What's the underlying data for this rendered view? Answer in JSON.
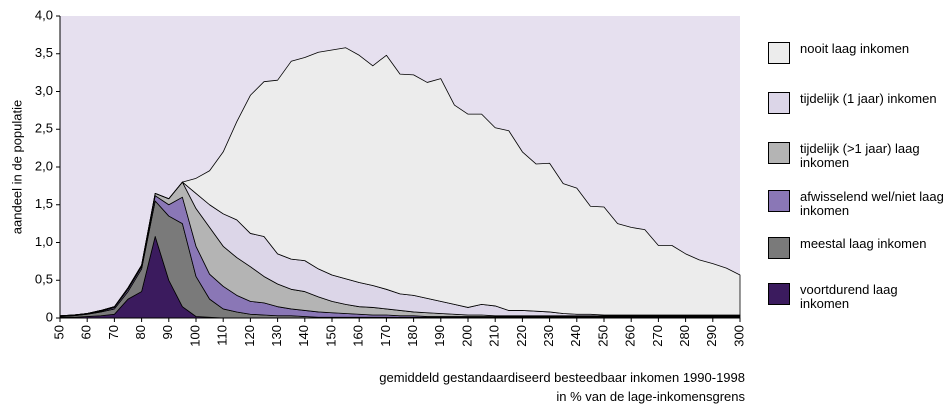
{
  "chart_data": {
    "type": "stacked-area",
    "ylabel": "aandeel in de populatie",
    "xlabel": [
      "gemiddeld gestandaardiseerd besteedbaar inkomen 1990-1998",
      "in % van de lage-inkomensgrens"
    ],
    "background": "#e6e0ef",
    "xlim": [
      50,
      300
    ],
    "ylim": [
      0,
      4
    ],
    "xticks": [
      50,
      60,
      70,
      80,
      90,
      100,
      110,
      120,
      130,
      140,
      150,
      160,
      170,
      180,
      190,
      200,
      210,
      220,
      230,
      240,
      250,
      260,
      270,
      280,
      290,
      300
    ],
    "yticks": [
      0,
      {
        "value": 0.5,
        "label": "0,5"
      },
      {
        "value": 1,
        "label": "1,0"
      },
      {
        "value": 1.5,
        "label": "1,5"
      },
      {
        "value": 2,
        "label": "2,0"
      },
      {
        "value": 2.5,
        "label": "2,5"
      },
      {
        "value": 3,
        "label": "3,0"
      },
      {
        "value": 3.5,
        "label": "3,5"
      },
      {
        "value": 4,
        "label": "4,0"
      }
    ],
    "x": [
      50,
      55,
      60,
      65,
      70,
      75,
      80,
      85,
      90,
      95,
      100,
      105,
      110,
      115,
      120,
      125,
      130,
      135,
      140,
      145,
      150,
      155,
      160,
      165,
      170,
      175,
      180,
      185,
      190,
      195,
      200,
      205,
      210,
      215,
      220,
      225,
      230,
      235,
      240,
      245,
      250,
      255,
      260,
      265,
      270,
      275,
      280,
      285,
      290,
      295,
      300
    ],
    "series": [
      {
        "name": "voortdurend laag inkomen",
        "color": "#3b1b5e",
        "values": [
          0.01,
          0.01,
          0.02,
          0.03,
          0.05,
          0.25,
          0.35,
          1.08,
          0.5,
          0.15,
          0.02,
          0.01,
          0,
          0,
          0,
          0,
          0,
          0,
          0,
          0,
          0,
          0,
          0,
          0,
          0,
          0,
          0,
          0,
          0,
          0,
          0,
          0,
          0,
          0,
          0,
          0,
          0,
          0,
          0,
          0,
          0,
          0,
          0,
          0,
          0,
          0,
          0,
          0,
          0,
          0,
          0
        ]
      },
      {
        "name": "meestal laag inkomen",
        "color": "#7a7a7a",
        "values": [
          0.01,
          0.02,
          0.03,
          0.05,
          0.07,
          0.1,
          0.3,
          0.47,
          0.85,
          1.1,
          0.53,
          0.24,
          0.12,
          0.08,
          0.05,
          0.04,
          0.03,
          0.03,
          0.02,
          0.01,
          0.01,
          0.01,
          0.01,
          0.01,
          0.01,
          0.01,
          0.01,
          0.01,
          0.01,
          0.01,
          0.01,
          0.01,
          0.01,
          0.01,
          0.01,
          0.01,
          0.01,
          0.01,
          0.01,
          0.01,
          0.01,
          0.01,
          0.01,
          0.01,
          0.01,
          0.01,
          0.01,
          0.01,
          0.01,
          0.01,
          0.01
        ]
      },
      {
        "name": "afwisselend wel/niet laag inkomen",
        "color": "#8a77b6",
        "values": [
          0.01,
          0.01,
          0.01,
          0.01,
          0.02,
          0.03,
          0.03,
          0.07,
          0.15,
          0.35,
          0.4,
          0.33,
          0.3,
          0.22,
          0.17,
          0.16,
          0.12,
          0.09,
          0.08,
          0.07,
          0.06,
          0.05,
          0.04,
          0.03,
          0.03,
          0.02,
          0.02,
          0.01,
          0.01,
          0.01,
          0.01,
          0.01,
          0.01,
          0.01,
          0.01,
          0.01,
          0.01,
          0.01,
          0.01,
          0.01,
          0.01,
          0.01,
          0.01,
          0.01,
          0.01,
          0.01,
          0.01,
          0.01,
          0.01,
          0.01,
          0.01
        ]
      },
      {
        "name": "tijdelijk (>1 jaar) laag inkomen",
        "color": "#b4b4b4",
        "values": [
          0,
          0,
          0,
          0.01,
          0.01,
          0.02,
          0.02,
          0.03,
          0.08,
          0.2,
          0.5,
          0.62,
          0.53,
          0.5,
          0.46,
          0.35,
          0.3,
          0.26,
          0.25,
          0.2,
          0.15,
          0.12,
          0.1,
          0.1,
          0.08,
          0.07,
          0.05,
          0.05,
          0.04,
          0.03,
          0.02,
          0.02,
          0.01,
          0.01,
          0.01,
          0.01,
          0.01,
          0.01,
          0.01,
          0.01,
          0.01,
          0.01,
          0.01,
          0.01,
          0.01,
          0.01,
          0.01,
          0.01,
          0.01,
          0.01,
          0.01
        ]
      },
      {
        "name": "tijdelijk (1 jaar) inkomen",
        "color": "#dcd6e8",
        "values": [
          0,
          0,
          0,
          0,
          0,
          0,
          0,
          0,
          0,
          0,
          0.2,
          0.3,
          0.43,
          0.5,
          0.44,
          0.53,
          0.4,
          0.4,
          0.41,
          0.37,
          0.35,
          0.34,
          0.32,
          0.29,
          0.26,
          0.22,
          0.22,
          0.19,
          0.16,
          0.13,
          0.1,
          0.14,
          0.13,
          0.07,
          0.07,
          0.06,
          0.05,
          0.03,
          0.02,
          0.02,
          0.01,
          0.01,
          0.01,
          0.01,
          0.01,
          0.01,
          0.01,
          0.01,
          0.01,
          0.01,
          0.01
        ]
      },
      {
        "name": "nooit laag inkomen",
        "color": "#ececec",
        "values": [
          0,
          0,
          0,
          0,
          0,
          0,
          0,
          0,
          0,
          0,
          0.2,
          0.45,
          0.82,
          1.3,
          1.83,
          2.05,
          2.3,
          2.62,
          2.69,
          2.87,
          2.98,
          3.06,
          3.01,
          2.91,
          3.1,
          2.91,
          2.92,
          2.86,
          2.95,
          2.64,
          2.56,
          2.52,
          2.36,
          2.38,
          2.1,
          1.95,
          1.97,
          1.72,
          1.67,
          1.43,
          1.43,
          1.21,
          1.16,
          1.13,
          0.92,
          0.92,
          0.81,
          0.73,
          0.68,
          0.62,
          0.53
        ]
      }
    ]
  }
}
